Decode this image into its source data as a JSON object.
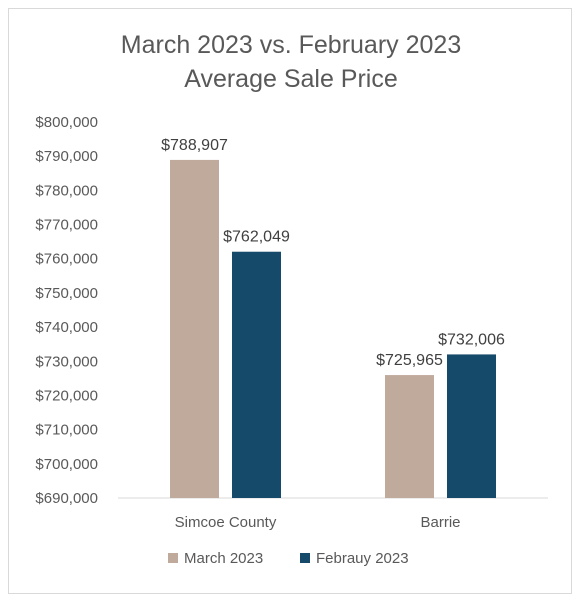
{
  "chart_data": {
    "type": "bar",
    "title_line1": "March 2023 vs. February 2023",
    "title_line2": "Average Sale Price",
    "categories": [
      "Simcoe County",
      "Barrie"
    ],
    "series": [
      {
        "name": "March 2023",
        "values": [
          788907,
          725965
        ],
        "labels": [
          "$788,907",
          "$725,965"
        ],
        "color": "#c0aa9c"
      },
      {
        "name": "Febrauy 2023",
        "values": [
          762049,
          732006
        ],
        "labels": [
          "$762,049",
          "$732,006"
        ],
        "color": "#154a6a"
      }
    ],
    "ylim": [
      690000,
      800000
    ],
    "yticks": [
      690000,
      700000,
      710000,
      720000,
      730000,
      740000,
      750000,
      760000,
      770000,
      780000,
      790000,
      800000
    ],
    "ytick_labels": [
      "$690,000",
      "$700,000",
      "$710,000",
      "$720,000",
      "$730,000",
      "$740,000",
      "$750,000",
      "$760,000",
      "$770,000",
      "$780,000",
      "$790,000",
      "$800,000"
    ],
    "grid": false,
    "legend_position": "bottom"
  }
}
